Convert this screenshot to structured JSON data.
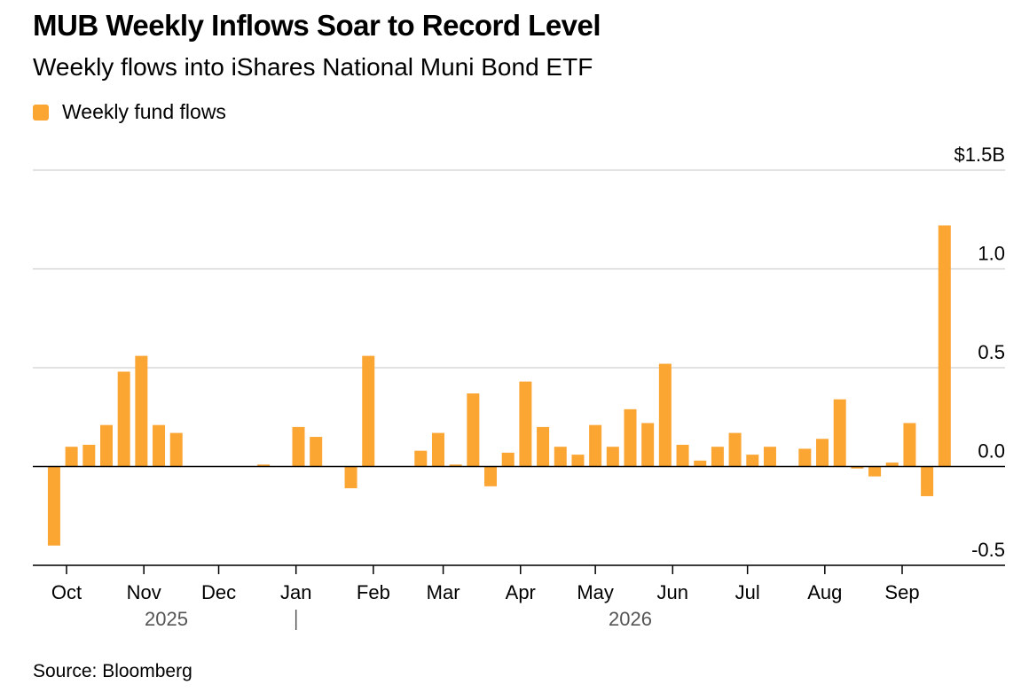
{
  "title": "MUB Weekly Inflows Soar to Record Level",
  "subtitle": "Weekly flows into iShares National Muni Bond ETF",
  "source": "Source: Bloomberg",
  "colors": {
    "bar": "#FBA533",
    "grid": "#d0d0d0",
    "zero": "#000000"
  },
  "chart_data": {
    "type": "bar",
    "legend": [
      {
        "name": "Weekly fund flows",
        "color": "#FBA533"
      }
    ],
    "ylim": [
      -0.5,
      1.5
    ],
    "y_ticks": [
      {
        "value": 1.5,
        "label": "$1.5B"
      },
      {
        "value": 1.0,
        "label": "1.0"
      },
      {
        "value": 0.5,
        "label": "0.5"
      },
      {
        "value": 0.0,
        "label": "0.0"
      },
      {
        "value": -0.5,
        "label": "-0.5"
      }
    ],
    "x_months": [
      {
        "date": "2025-10-01",
        "label": "Oct"
      },
      {
        "date": "2025-11-01",
        "label": "Nov"
      },
      {
        "date": "2025-12-01",
        "label": "Dec"
      },
      {
        "date": "2026-01-01",
        "label": "Jan"
      },
      {
        "date": "2026-02-01",
        "label": "Feb"
      },
      {
        "date": "2026-03-01",
        "label": "Mar"
      },
      {
        "date": "2026-04-01",
        "label": "Apr"
      },
      {
        "date": "2026-05-01",
        "label": "May"
      },
      {
        "date": "2026-06-01",
        "label": "Jun"
      },
      {
        "date": "2026-07-01",
        "label": "Jul"
      },
      {
        "date": "2026-08-01",
        "label": "Aug"
      },
      {
        "date": "2026-09-01",
        "label": "Sep"
      }
    ],
    "x_years": [
      {
        "date": "2025-11-10",
        "label": "2025"
      },
      {
        "date": "2026-05-15",
        "label": "2026"
      }
    ],
    "series": [
      {
        "name": "Weekly fund flows",
        "points": [
          {
            "date": "2025-09-26",
            "value": -0.4
          },
          {
            "date": "2025-10-03",
            "value": 0.1
          },
          {
            "date": "2025-10-10",
            "value": 0.11
          },
          {
            "date": "2025-10-17",
            "value": 0.21
          },
          {
            "date": "2025-10-24",
            "value": 0.48
          },
          {
            "date": "2025-10-31",
            "value": 0.56
          },
          {
            "date": "2025-11-07",
            "value": 0.21
          },
          {
            "date": "2025-11-14",
            "value": 0.17
          },
          {
            "date": "2025-12-19",
            "value": 0.01
          },
          {
            "date": "2026-01-02",
            "value": 0.2
          },
          {
            "date": "2026-01-09",
            "value": 0.15
          },
          {
            "date": "2026-01-23",
            "value": -0.11
          },
          {
            "date": "2026-01-30",
            "value": 0.56
          },
          {
            "date": "2026-02-20",
            "value": 0.08
          },
          {
            "date": "2026-02-27",
            "value": 0.17
          },
          {
            "date": "2026-03-06",
            "value": 0.01
          },
          {
            "date": "2026-03-13",
            "value": 0.37
          },
          {
            "date": "2026-03-20",
            "value": -0.1
          },
          {
            "date": "2026-03-27",
            "value": 0.07
          },
          {
            "date": "2026-04-03",
            "value": 0.43
          },
          {
            "date": "2026-04-10",
            "value": 0.2
          },
          {
            "date": "2026-04-17",
            "value": 0.1
          },
          {
            "date": "2026-04-24",
            "value": 0.06
          },
          {
            "date": "2026-05-01",
            "value": 0.21
          },
          {
            "date": "2026-05-08",
            "value": 0.1
          },
          {
            "date": "2026-05-15",
            "value": 0.29
          },
          {
            "date": "2026-05-22",
            "value": 0.22
          },
          {
            "date": "2026-05-29",
            "value": 0.52
          },
          {
            "date": "2026-06-05",
            "value": 0.11
          },
          {
            "date": "2026-06-12",
            "value": 0.03
          },
          {
            "date": "2026-06-19",
            "value": 0.1
          },
          {
            "date": "2026-06-26",
            "value": 0.17
          },
          {
            "date": "2026-07-03",
            "value": 0.06
          },
          {
            "date": "2026-07-10",
            "value": 0.1
          },
          {
            "date": "2026-07-24",
            "value": 0.09
          },
          {
            "date": "2026-07-31",
            "value": 0.14
          },
          {
            "date": "2026-08-07",
            "value": 0.34
          },
          {
            "date": "2026-08-14",
            "value": -0.01
          },
          {
            "date": "2026-08-21",
            "value": -0.05
          },
          {
            "date": "2026-08-28",
            "value": 0.02
          },
          {
            "date": "2026-09-04",
            "value": 0.22
          },
          {
            "date": "2026-09-11",
            "value": -0.15
          },
          {
            "date": "2026-09-18",
            "value": 1.22
          }
        ]
      }
    ]
  }
}
